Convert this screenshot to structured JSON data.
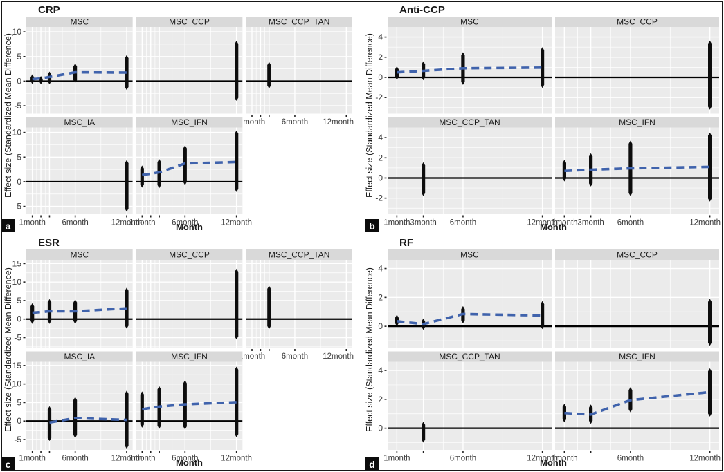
{
  "figure": {
    "background": "#ffffff",
    "border_color": "#161616",
    "panel_letters": [
      "a",
      "b",
      "c",
      "d"
    ]
  },
  "style": {
    "panel_bg": "#ebebeb",
    "strip_bg": "#d9d9d9",
    "grid_color": "#ffffff",
    "bar_color": "#0d0d0d",
    "trend_color": "#4063ac",
    "zero_line_color": "#000000",
    "title_color": "#1a1a1a",
    "tick_label_color": "#3d3d3d"
  },
  "chart_data": [
    {
      "id": "a",
      "panel_label": "a",
      "type": "faceted-errorbar",
      "title": "CRP",
      "ylabel": "Effect size (Standardized Mean Difference)",
      "xlabel": "Month",
      "columns": 3,
      "ylim": [
        -6.6,
        11.0
      ],
      "y_ticks": [
        -5,
        0,
        5,
        10
      ],
      "x_domain": [
        0.3,
        12.7
      ],
      "x_ticks": [
        {
          "month": 1,
          "label": "1month"
        },
        {
          "month": 2,
          "label": ""
        },
        {
          "month": 3,
          "label": ""
        },
        {
          "month": 6,
          "label": "6month"
        },
        {
          "month": 12,
          "label": "12month"
        }
      ],
      "facets": [
        {
          "name": "MSC",
          "intervals": [
            [
              1,
              -0.6,
              1.4
            ],
            [
              2,
              -0.65,
              1.05
            ],
            [
              3,
              -0.65,
              1.95
            ],
            [
              6,
              -0.4,
              3.6
            ],
            [
              12,
              -1.8,
              5.3
            ]
          ],
          "trend": [
            [
              1,
              0.4
            ],
            [
              2,
              0.55
            ],
            [
              3,
              0.85
            ],
            [
              6,
              1.8
            ],
            [
              12,
              1.75
            ]
          ]
        },
        {
          "name": "MSC_CCP",
          "intervals": [
            [
              12,
              -4.0,
              8.2
            ]
          ],
          "trend": []
        },
        {
          "name": "MSC_CCP_TAN",
          "intervals": [
            [
              3,
              -1.5,
              3.9
            ]
          ],
          "trend": []
        },
        {
          "name": "MSC_IA",
          "intervals": [
            [
              12,
              -6.1,
              4.4
            ]
          ],
          "trend": []
        },
        {
          "name": "MSC_IFN",
          "intervals": [
            [
              1,
              -1.2,
              3.3
            ],
            [
              3,
              -1.3,
              4.6
            ],
            [
              6,
              -0.7,
              7.4
            ],
            [
              12,
              -2.1,
              10.4
            ]
          ],
          "trend": [
            [
              1,
              1.35
            ],
            [
              3,
              1.9
            ],
            [
              6,
              3.7
            ],
            [
              12,
              4.0
            ]
          ]
        }
      ]
    },
    {
      "id": "b",
      "panel_label": "b",
      "type": "faceted-errorbar",
      "title": "Anti-CCP",
      "ylabel": "Effect size (Standardized Mean Difference)",
      "xlabel": "Month",
      "columns": 2,
      "ylim": [
        -3.6,
        5.0
      ],
      "y_ticks": [
        -2,
        0,
        2,
        4
      ],
      "x_domain": [
        0.3,
        12.7
      ],
      "x_ticks": [
        {
          "month": 1,
          "label": "1month"
        },
        {
          "month": 3,
          "label": "3month"
        },
        {
          "month": 6,
          "label": "6month"
        },
        {
          "month": 12,
          "label": "12month"
        }
      ],
      "facets": [
        {
          "name": "MSC",
          "intervals": [
            [
              1,
              -0.25,
              1.1
            ],
            [
              3,
              -0.3,
              1.6
            ],
            [
              6,
              -0.75,
              2.5
            ],
            [
              12,
              -1.05,
              3.0
            ]
          ],
          "trend": [
            [
              1,
              0.5
            ],
            [
              3,
              0.65
            ],
            [
              6,
              0.9
            ],
            [
              12,
              0.97
            ]
          ]
        },
        {
          "name": "MSC_CCP",
          "intervals": [
            [
              12,
              -3.2,
              3.65
            ]
          ],
          "trend": []
        },
        {
          "name": "MSC_CCP_TAN",
          "intervals": [
            [
              3,
              -1.8,
              1.55
            ]
          ],
          "trend": []
        },
        {
          "name": "MSC_IFN",
          "intervals": [
            [
              1,
              -0.35,
              1.8
            ],
            [
              3,
              -0.85,
              2.45
            ],
            [
              6,
              -1.8,
              3.7
            ],
            [
              12,
              -2.35,
              4.5
            ]
          ],
          "trend": [
            [
              1,
              0.7
            ],
            [
              3,
              0.82
            ],
            [
              6,
              0.96
            ],
            [
              12,
              1.1
            ]
          ]
        }
      ]
    },
    {
      "id": "c",
      "panel_label": "c",
      "type": "faceted-errorbar",
      "title": "ESR",
      "ylabel": "Effect size (Standardized Mean Difference)",
      "xlabel": "Month",
      "columns": 3,
      "ylim": [
        -7.8,
        16.0
      ],
      "y_ticks": [
        -5,
        0,
        5,
        10,
        15
      ],
      "x_domain": [
        0.3,
        12.7
      ],
      "x_ticks": [
        {
          "month": 1,
          "label": "1month"
        },
        {
          "month": 2,
          "label": ""
        },
        {
          "month": 3,
          "label": ""
        },
        {
          "month": 6,
          "label": "6month"
        },
        {
          "month": 12,
          "label": "12month"
        }
      ],
      "facets": [
        {
          "name": "MSC",
          "intervals": [
            [
              1,
              -1.3,
              4.3
            ],
            [
              3,
              -1.3,
              5.4
            ],
            [
              6,
              -1.3,
              5.3
            ],
            [
              12,
              -2.6,
              8.5
            ]
          ],
          "trend": [
            [
              1,
              1.7
            ],
            [
              3,
              2.1
            ],
            [
              6,
              2.1
            ],
            [
              12,
              2.9
            ]
          ]
        },
        {
          "name": "MSC_CCP",
          "intervals": [
            [
              12,
              -5.5,
              13.6
            ]
          ],
          "trend": []
        },
        {
          "name": "MSC_CCP_TAN",
          "intervals": [
            [
              3,
              -2.7,
              9.0
            ]
          ],
          "trend": []
        },
        {
          "name": "MSC_IA",
          "intervals": [
            [
              3,
              -5.4,
              4.0
            ],
            [
              6,
              -4.6,
              6.5
            ],
            [
              12,
              -7.5,
              8.2
            ]
          ],
          "trend": [
            [
              3,
              -0.4
            ],
            [
              6,
              0.8
            ],
            [
              12,
              0.3
            ]
          ]
        },
        {
          "name": "MSC_IFN",
          "intervals": [
            [
              1,
              -1.8,
              8.0
            ],
            [
              3,
              -2.1,
              9.4
            ],
            [
              6,
              -2.3,
              11.0
            ],
            [
              12,
              -4.4,
              14.7
            ]
          ],
          "trend": [
            [
              1,
              3.2
            ],
            [
              3,
              3.9
            ],
            [
              6,
              4.5
            ],
            [
              12,
              5.1
            ]
          ]
        }
      ]
    },
    {
      "id": "d",
      "panel_label": "d",
      "type": "faceted-errorbar",
      "title": "RF",
      "ylabel": "Effect size (Standardized Mean Difference)",
      "xlabel": "Month",
      "columns": 2,
      "ylim": [
        -1.5,
        4.6
      ],
      "y_ticks": [
        0,
        2,
        4
      ],
      "x_domain": [
        0.3,
        12.7
      ],
      "x_ticks": [
        {
          "month": 1,
          "label": "1month"
        },
        {
          "month": 3,
          "label": ""
        },
        {
          "month": 6,
          "label": "6month"
        },
        {
          "month": 12,
          "label": "12month"
        }
      ],
      "facets": [
        {
          "name": "MSC",
          "intervals": [
            [
              1,
              0.0,
              0.8
            ],
            [
              3,
              -0.25,
              0.55
            ],
            [
              6,
              0.2,
              1.4
            ],
            [
              12,
              -0.2,
              1.75
            ]
          ],
          "trend": [
            [
              1,
              0.35
            ],
            [
              3,
              0.15
            ],
            [
              6,
              0.85
            ],
            [
              12,
              0.75
            ]
          ]
        },
        {
          "name": "MSC_CCP",
          "intervals": [
            [
              12,
              -1.35,
              1.9
            ]
          ],
          "trend": []
        },
        {
          "name": "MSC_CCP_TAN",
          "intervals": [
            [
              3,
              -1.0,
              0.45
            ]
          ],
          "trend": []
        },
        {
          "name": "MSC_IFN",
          "intervals": [
            [
              1,
              0.4,
              1.7
            ],
            [
              3,
              0.3,
              1.65
            ],
            [
              6,
              1.1,
              2.85
            ],
            [
              12,
              0.8,
              4.15
            ]
          ],
          "trend": [
            [
              1,
              1.05
            ],
            [
              3,
              0.95
            ],
            [
              6,
              1.95
            ],
            [
              12,
              2.5
            ]
          ]
        }
      ]
    }
  ]
}
